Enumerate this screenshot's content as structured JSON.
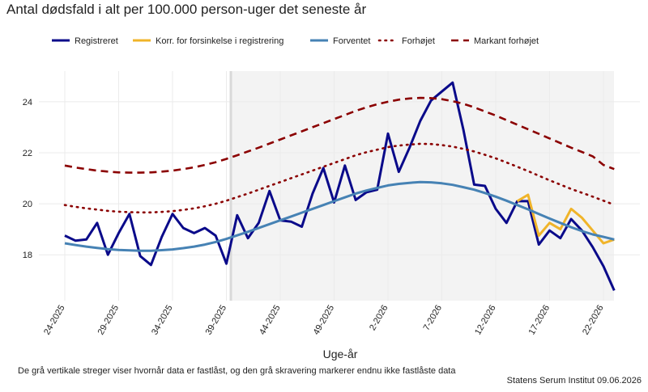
{
  "chart_data": {
    "type": "line",
    "title": "Antal dødsfald i alt per 100.000 person-uger det seneste år",
    "x_label": "Uge-år",
    "caption": "De grå vertikale streger viser hvornår data er fastlåst, og den grå skravering markerer endnu ikke fastlåste data",
    "source": "Statens Serum Institut  09.06.2026",
    "categories": [
      "24-2025",
      null,
      null,
      null,
      null,
      "29-2025",
      null,
      null,
      null,
      null,
      "34-2025",
      null,
      null,
      null,
      null,
      "39-2025",
      null,
      null,
      null,
      null,
      "44-2025",
      null,
      null,
      null,
      null,
      "49-2025",
      null,
      null,
      null,
      null,
      "2-2026",
      null,
      null,
      null,
      null,
      "7-2026",
      null,
      null,
      null,
      null,
      "12-2026",
      null,
      null,
      null,
      null,
      "17-2026",
      null,
      null,
      null,
      null,
      "22-2026",
      null
    ],
    "ylim": [
      16.2,
      25.2
    ],
    "yticks": [
      18,
      20,
      22,
      24
    ],
    "grid": true,
    "legend": "top",
    "series": [
      {
        "name": "Registreret",
        "color": "#0a0a8a",
        "dash": "solid",
        "values": [
          18.75,
          18.55,
          18.6,
          19.25,
          18.0,
          18.85,
          19.6,
          17.95,
          17.6,
          18.7,
          19.6,
          19.05,
          18.85,
          19.05,
          18.75,
          17.65,
          19.55,
          18.65,
          19.25,
          20.5,
          19.35,
          19.3,
          19.1,
          20.4,
          21.4,
          20.05,
          21.5,
          20.15,
          20.45,
          20.55,
          22.75,
          21.25,
          22.2,
          23.25,
          24.05,
          24.4,
          24.75,
          22.9,
          20.75,
          20.7,
          19.8,
          19.25,
          20.1,
          20.1,
          18.4,
          18.95,
          18.65,
          19.4,
          18.95,
          18.3,
          17.55,
          16.6
        ]
      },
      {
        "name": "Korr. for forsinkelse i registrering",
        "color": "#f0b429",
        "dash": "solid",
        "values": [
          null,
          null,
          null,
          null,
          null,
          null,
          null,
          null,
          null,
          null,
          null,
          null,
          null,
          null,
          null,
          null,
          null,
          null,
          null,
          null,
          null,
          null,
          null,
          null,
          null,
          null,
          null,
          null,
          null,
          null,
          null,
          null,
          null,
          null,
          null,
          null,
          null,
          null,
          null,
          null,
          null,
          null,
          20.1,
          20.35,
          18.75,
          19.25,
          19.0,
          19.8,
          19.45,
          18.95,
          18.45,
          18.6
        ]
      },
      {
        "name": "Forventet",
        "color": "#4682b4",
        "dash": "solid",
        "values": [
          18.45,
          18.38,
          18.32,
          18.27,
          18.22,
          18.19,
          18.17,
          18.16,
          18.16,
          18.18,
          18.21,
          18.26,
          18.32,
          18.4,
          18.5,
          18.62,
          18.76,
          18.9,
          19.05,
          19.2,
          19.35,
          19.5,
          19.65,
          19.8,
          19.95,
          20.1,
          20.25,
          20.4,
          20.52,
          20.62,
          20.72,
          20.78,
          20.82,
          20.85,
          20.84,
          20.8,
          20.74,
          20.65,
          20.55,
          20.42,
          20.28,
          20.12,
          19.95,
          19.78,
          19.6,
          19.42,
          19.25,
          19.08,
          18.93,
          18.8,
          18.7,
          18.6
        ]
      },
      {
        "name": "Forhøjet",
        "color": "#8b0000",
        "dash": "dotted",
        "values": [
          19.95,
          19.88,
          19.82,
          19.77,
          19.72,
          19.69,
          19.67,
          19.66,
          19.66,
          19.68,
          19.71,
          19.76,
          19.82,
          19.9,
          20.0,
          20.12,
          20.26,
          20.4,
          20.55,
          20.7,
          20.85,
          21.0,
          21.15,
          21.3,
          21.45,
          21.6,
          21.75,
          21.9,
          22.02,
          22.12,
          22.22,
          22.28,
          22.32,
          22.35,
          22.34,
          22.3,
          22.24,
          22.15,
          22.05,
          21.92,
          21.78,
          21.62,
          21.45,
          21.28,
          21.1,
          20.92,
          20.75,
          20.58,
          20.43,
          20.28,
          20.12,
          19.96
        ]
      },
      {
        "name": "Markant forhøjet",
        "color": "#8b0000",
        "dash": "dashed",
        "values": [
          21.5,
          21.42,
          21.36,
          21.3,
          21.26,
          21.23,
          21.22,
          21.22,
          21.23,
          21.26,
          21.3,
          21.36,
          21.43,
          21.52,
          21.63,
          21.76,
          21.9,
          22.05,
          22.2,
          22.36,
          22.52,
          22.68,
          22.84,
          23.0,
          23.16,
          23.32,
          23.48,
          23.64,
          23.78,
          23.9,
          24.0,
          24.08,
          24.13,
          24.15,
          24.14,
          24.1,
          24.02,
          23.92,
          23.78,
          23.62,
          23.46,
          23.28,
          23.1,
          22.92,
          22.74,
          22.56,
          22.38,
          22.2,
          22.03,
          21.86,
          21.52,
          21.36
        ]
      }
    ]
  }
}
